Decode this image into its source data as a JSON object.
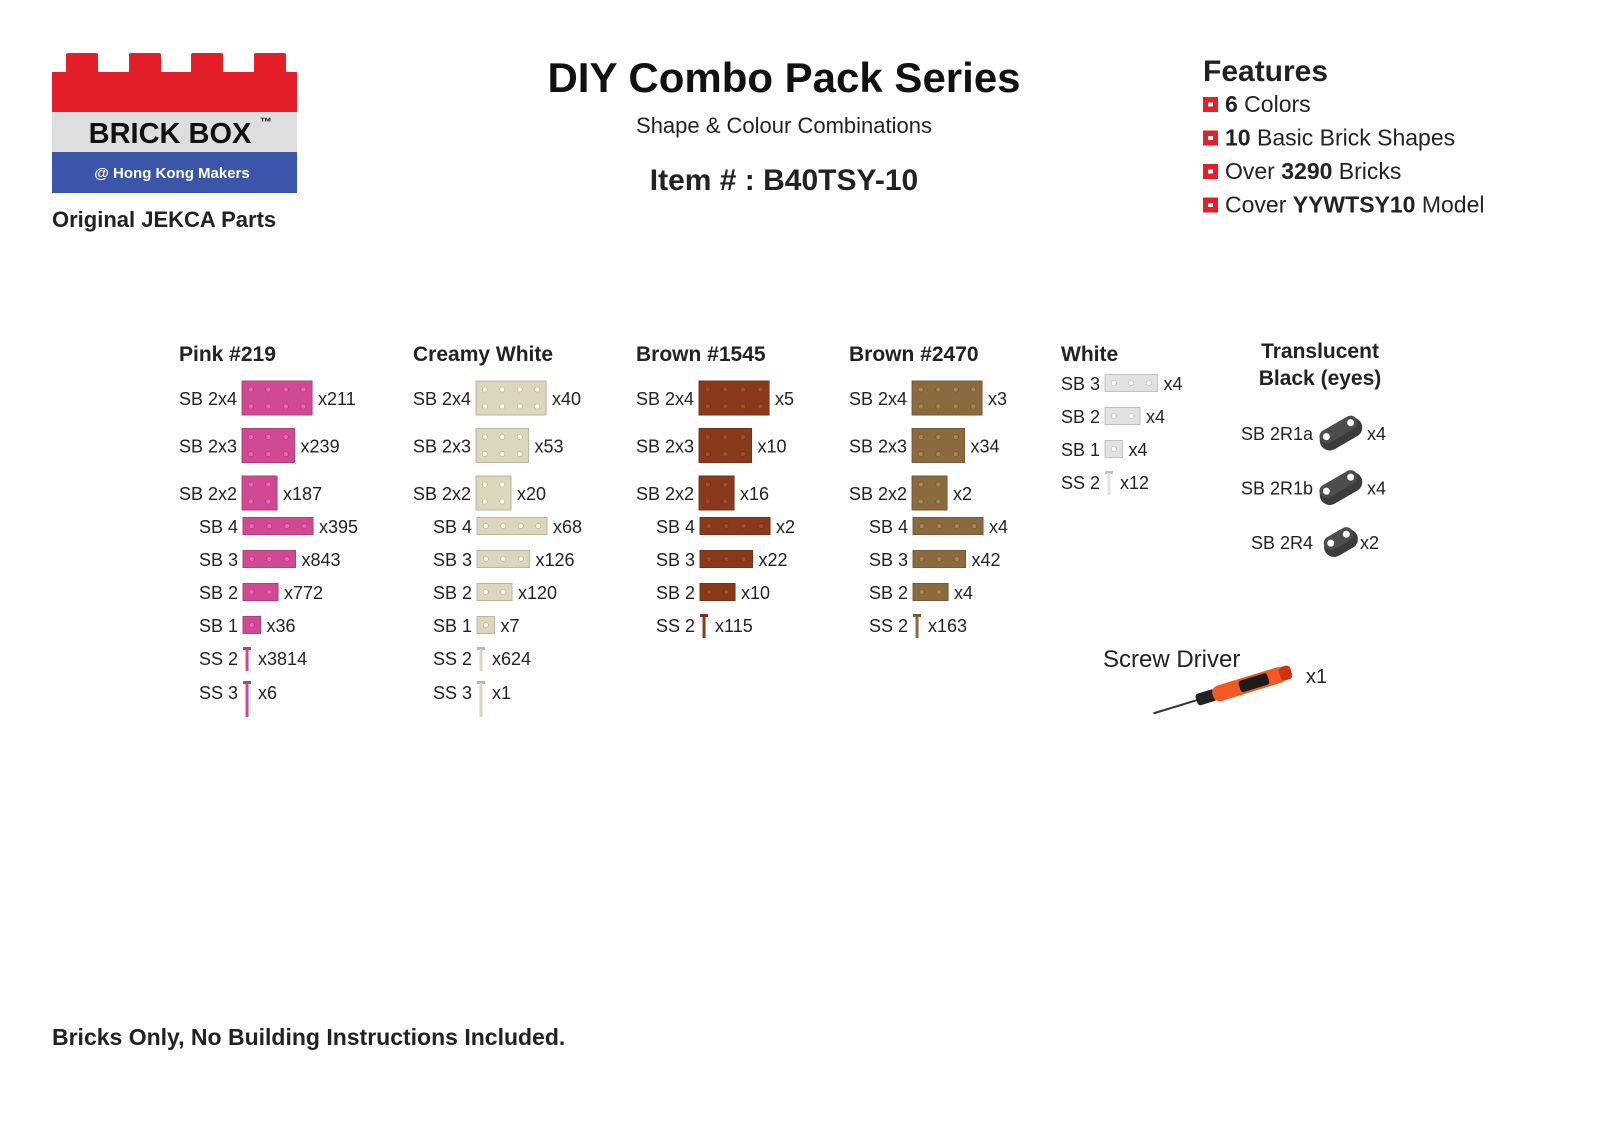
{
  "logo": {
    "brand": "BRICK BOX",
    "tm": "™",
    "tagline": "@ Hong Kong Makers",
    "subtitle": "Original JEKCA Parts"
  },
  "header": {
    "title": "DIY Combo Pack Series",
    "subtitle": "Shape & Colour Combinations",
    "item": "Item # : B40TSY-10"
  },
  "features": {
    "title": "Features",
    "items": [
      [
        {
          "text": "6",
          "bold": true
        },
        {
          "text": " Colors"
        }
      ],
      [
        {
          "text": "10",
          "bold": true
        },
        {
          "text": " Basic Brick Shapes"
        }
      ],
      [
        {
          "text": "Over "
        },
        {
          "text": "3290",
          "bold": true
        },
        {
          "text": " Bricks"
        }
      ],
      [
        {
          "text": "Cover "
        },
        {
          "text": "YYWTSY10",
          "bold": true
        },
        {
          "text": " Model"
        }
      ]
    ]
  },
  "groups": [
    {
      "name": "Pink #219",
      "color": "#cf4a93",
      "parts": [
        {
          "code": "SB 2x4",
          "count": "x211"
        },
        {
          "code": "SB 2x3",
          "count": "x239"
        },
        {
          "code": "SB 2x2",
          "count": "x187"
        },
        {
          "code": "SB 4",
          "count": "x395"
        },
        {
          "code": "SB 3",
          "count": "x843"
        },
        {
          "code": "SB 2",
          "count": "x772"
        },
        {
          "code": "SB 1",
          "count": "x36"
        },
        {
          "code": "SS 2",
          "count": "x3814"
        },
        {
          "code": "SS 3",
          "count": "x6"
        }
      ]
    },
    {
      "name": "Creamy White",
      "color": "#ddd6bd",
      "parts": [
        {
          "code": "SB 2x4",
          "count": "x40"
        },
        {
          "code": "SB 2x3",
          "count": "x53"
        },
        {
          "code": "SB 2x2",
          "count": "x20"
        },
        {
          "code": "SB 4",
          "count": "x68"
        },
        {
          "code": "SB 3",
          "count": "x126"
        },
        {
          "code": "SB 2",
          "count": "x120"
        },
        {
          "code": "SB 1",
          "count": "x7"
        },
        {
          "code": "SS 2",
          "count": "x624"
        },
        {
          "code": "SS 3",
          "count": "x1"
        }
      ]
    },
    {
      "name": "Brown #1545",
      "color": "#8a3a1c",
      "parts": [
        {
          "code": "SB 2x4",
          "count": "x5"
        },
        {
          "code": "SB 2x3",
          "count": "x10"
        },
        {
          "code": "SB 2x2",
          "count": "x16"
        },
        {
          "code": "SB 4",
          "count": "x2"
        },
        {
          "code": "SB 3",
          "count": "x22"
        },
        {
          "code": "SB 2",
          "count": "x10"
        },
        {
          "code": "SS 2",
          "count": "x115"
        }
      ]
    },
    {
      "name": "Brown #2470",
      "color": "#8a6a3e",
      "parts": [
        {
          "code": "SB 2x4",
          "count": "x3"
        },
        {
          "code": "SB 2x3",
          "count": "x34"
        },
        {
          "code": "SB 2x2",
          "count": "x2"
        },
        {
          "code": "SB 4",
          "count": "x4"
        },
        {
          "code": "SB 3",
          "count": "x42"
        },
        {
          "code": "SB 2",
          "count": "x4"
        },
        {
          "code": "SS 2",
          "count": "x163"
        }
      ]
    },
    {
      "name": "White",
      "color": "#e2e2e2",
      "parts": [
        {
          "code": "SB 3",
          "count": "x4"
        },
        {
          "code": "SB 2",
          "count": "x4"
        },
        {
          "code": "SB 1",
          "count": "x4"
        },
        {
          "code": "SS 2",
          "count": "x12"
        }
      ]
    },
    {
      "name": "Translucent Black (eyes)",
      "color": "#3b3b3b",
      "parts": [
        {
          "code": "SB 2R1a",
          "count": "x4"
        },
        {
          "code": "SB 2R1b",
          "count": "x4"
        },
        {
          "code": "SB 2R4",
          "count": "x2"
        }
      ]
    }
  ],
  "tool": {
    "label": "Screw Driver",
    "count": "x1"
  },
  "footer": "Bricks Only, No Building Instructions Included."
}
